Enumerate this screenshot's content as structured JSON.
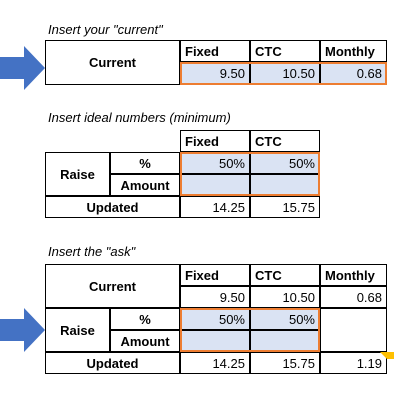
{
  "sections": [
    {
      "caption": "Insert your \"current\"",
      "headers": [
        "Fixed",
        "CTC",
        "Monthly"
      ],
      "current": {
        "label": "Current",
        "values": [
          "9.50",
          "10.50",
          "0.68"
        ]
      }
    },
    {
      "caption": "Insert ideal numbers (minimum)",
      "headers": [
        "Fixed",
        "CTC"
      ],
      "raise": {
        "label": "Raise",
        "percent_label": "%",
        "percent_values": [
          "50%",
          "50%"
        ],
        "amount_label": "Amount"
      },
      "updated": {
        "label": "Updated",
        "values": [
          "14.25",
          "15.75"
        ]
      }
    },
    {
      "caption": "Insert the \"ask\"",
      "headers": [
        "Fixed",
        "CTC",
        "Monthly"
      ],
      "current": {
        "label": "Current",
        "values": [
          "9.50",
          "10.50",
          "0.68"
        ]
      },
      "raise": {
        "label": "Raise",
        "percent_label": "%",
        "percent_values": [
          "50%",
          "50%"
        ],
        "amount_label": "Amount"
      },
      "updated": {
        "label": "Updated",
        "values": [
          "14.25",
          "15.75",
          "1.19"
        ]
      }
    }
  ]
}
